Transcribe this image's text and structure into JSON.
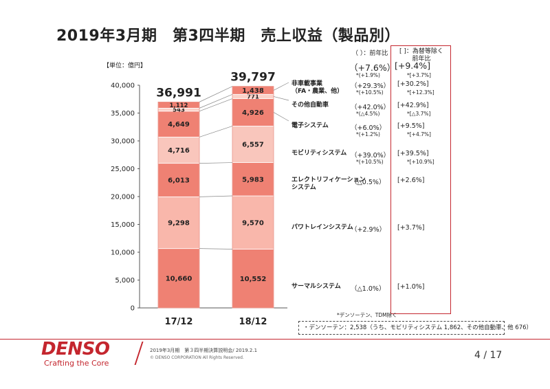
{
  "title": "2019年3月期　第3四半期　売上収益（製品別）",
  "unit_label": "【単位：億円】",
  "header_yoy": "（ ）：前年比",
  "header_fx_line1": "[ ]：為替等除く",
  "header_fx_line2": "前年比",
  "chart_data": {
    "type": "bar",
    "stacked": true,
    "categories": [
      "17/12",
      "18/12"
    ],
    "totals": [
      "36,991",
      "39,797"
    ],
    "ylim": [
      0,
      40000
    ],
    "yticks": [
      0,
      5000,
      10000,
      15000,
      20000,
      25000,
      30000,
      35000,
      40000
    ],
    "ytick_labels": [
      "0",
      "5,000",
      "10,000",
      "15,000",
      "20,000",
      "25,000",
      "30,000",
      "35,000",
      "40,000"
    ],
    "grid": false,
    "series": [
      {
        "name": "サーマルシステム",
        "values": [
          10660,
          10552
        ],
        "labels": [
          "10,660",
          "10,552"
        ],
        "color": "#ef8173",
        "yoy": "（△1.0%）",
        "yoy_fx": "[+1.0%]"
      },
      {
        "name": "パワトレインシステム",
        "values": [
          9298,
          9570
        ],
        "labels": [
          "9,298",
          "9,570"
        ],
        "color": "#f9b7ab",
        "yoy": "（+2.9%）",
        "yoy_fx": "[+3.7%]"
      },
      {
        "name": "エレクトリフィケーションシステム",
        "display_lines": [
          "エレクトリフィケーション",
          "システム"
        ],
        "values": [
          6013,
          5983
        ],
        "labels": [
          "6,013",
          "5,983"
        ],
        "color": "#ef8173",
        "yoy": "（△0.5%）",
        "yoy_fx": "[+2.6%]"
      },
      {
        "name": "モビリティシステム",
        "values": [
          4716,
          6557
        ],
        "labels": [
          "4,716",
          "6,557"
        ],
        "color": "#f9c6bc",
        "yoy": "（+39.0%）",
        "yoy_sub": "*(+10.5%)",
        "yoy_fx": "[+39.5%]",
        "yoy_fx_sub": "*[+10.9%]"
      },
      {
        "name": "電子システム",
        "values": [
          4649,
          4926
        ],
        "labels": [
          "4,649",
          "4,926"
        ],
        "color": "#ef8173",
        "yoy": "（+6.0%）",
        "yoy_sub": "*(+1.2%)",
        "yoy_fx": "[+9.5%]",
        "yoy_fx_sub": "*[+4.7%]"
      },
      {
        "name": "その他自動車",
        "values": [
          543,
          771
        ],
        "labels": [
          "543",
          "771"
        ],
        "color": "#fbd2c9",
        "yoy": "（+42.0%）",
        "yoy_sub": "*(△4.5%)",
        "yoy_fx": "[+42.9%]",
        "yoy_fx_sub": "*[△3.7%]"
      },
      {
        "name": "非車載事業（FA・農業、他）",
        "display_lines": [
          "非車載事業",
          "（FA・農業、他）"
        ],
        "values": [
          1112,
          1438
        ],
        "labels": [
          "1,112",
          "1,438"
        ],
        "color": "#ef8173",
        "yoy": "（+29.3%）",
        "yoy_sub": "*(+10.5%)",
        "yoy_fx": "[+30.2%]",
        "yoy_fx_sub": "*[+12.3%]"
      }
    ],
    "total_yoy": "（+7.6%）",
    "total_yoy_sub": "*(+1.9%)",
    "total_yoy_fx": "[+9.4%]",
    "total_yoy_fx_sub": "*[+3.7%]"
  },
  "note": "*デンソーテン、TDM除く",
  "detail_box": "・デンソーテン：2,538（うち、モビリティシステム 1,862、その他自動車、他 676）",
  "footer": {
    "logo": "DENSO",
    "tagline": "Crafting the Core",
    "event": "2019年3月期　第３四半期決算説明会/ 2019.2.1",
    "copyright": "© DENSO CORPORATION All Rights Reserved.",
    "page": "4 / 17"
  }
}
